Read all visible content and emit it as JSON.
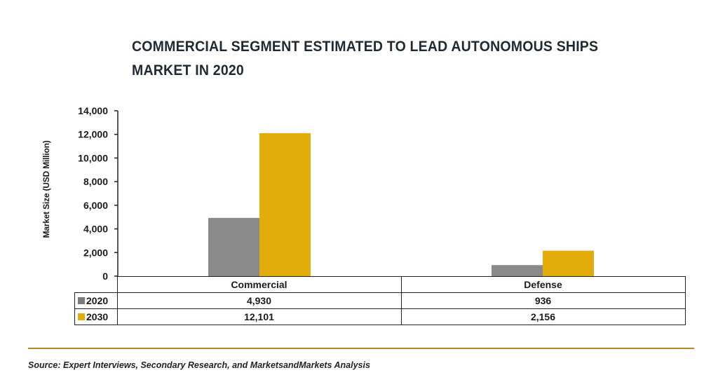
{
  "chart_data": {
    "type": "bar",
    "title": "COMMERCIAL SEGMENT ESTIMATED TO LEAD AUTONOMOUS SHIPS MARKET IN 2020",
    "ylabel": "Market Size (USD Million)",
    "xlabel": "",
    "categories": [
      "Commercial",
      "Defense"
    ],
    "series": [
      {
        "name": "2020",
        "values": [
          4930,
          936
        ],
        "labels": [
          "4,930",
          "936"
        ],
        "color": "#8a8a8a"
      },
      {
        "name": "2030",
        "values": [
          12101,
          2156
        ],
        "labels": [
          "12,101",
          "2,156"
        ],
        "color": "#e2ad0b"
      }
    ],
    "ylim": [
      0,
      14000
    ],
    "yticks": [
      0,
      2000,
      4000,
      6000,
      8000,
      10000,
      12000,
      14000
    ],
    "ytick_labels": [
      "0",
      "2,000",
      "4,000",
      "6,000",
      "8,000",
      "10,000",
      "12,000",
      "14,000"
    ],
    "grid": false,
    "legend": "data-table"
  },
  "source": "Source: Expert Interviews, Secondary Research, and MarketsandMarkets Analysis"
}
